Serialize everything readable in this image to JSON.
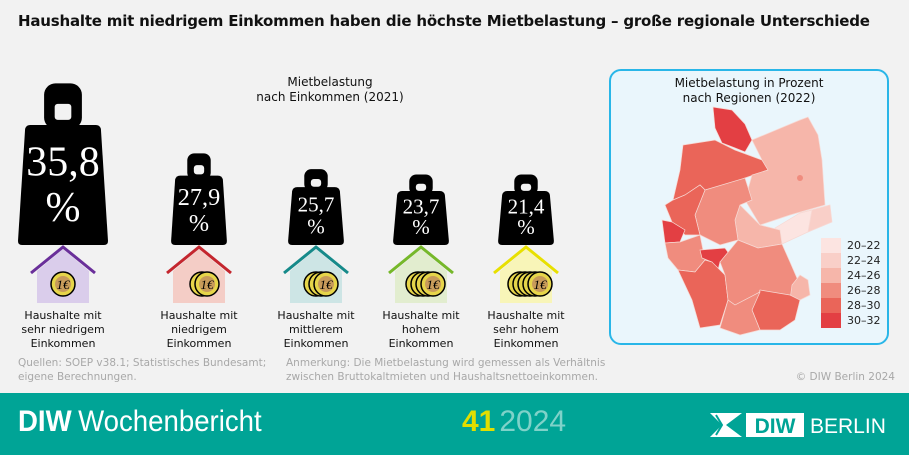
{
  "title": "Haushalte mit niedrigem Einkommen haben die höchste Mietbelastung – große regionale Unterschiede",
  "left_chart": {
    "title_line1": "Mietbelastung",
    "title_line2": "nach Einkommen (2021)"
  },
  "chart_data": [
    {
      "type": "pictogram-bar",
      "title": "Mietbelastung nach Einkommen (2021)",
      "unit": "%",
      "categories": [
        "Haushalte mit sehr niedrigem Einkommen",
        "Haushalte mit niedrigem Einkommen",
        "Haushalte mit mittlerem Einkommen",
        "Haushalte mit hohem Einkommen",
        "Haushalte mit sehr hohem Einkommen"
      ],
      "values": [
        35.8,
        27.9,
        25.7,
        23.7,
        21.4
      ],
      "value_labels": [
        "35,8",
        "27,9",
        "25,7",
        "23,7",
        "21,4"
      ]
    },
    {
      "type": "choropleth",
      "title": "Mietbelastung in Prozent nach Regionen (2022)",
      "legend": [
        "20–22",
        "22–24",
        "24–26",
        "26–28",
        "28–30",
        "30–32"
      ],
      "legend_colors": [
        "#fce4e1",
        "#f9cfc8",
        "#f6b6aa",
        "#f08c7e",
        "#ea6559",
        "#e33f43"
      ],
      "legend_placement": "bottom-right"
    }
  ],
  "weights": [
    {
      "value": "35,8",
      "pct": "%",
      "label": [
        "Haushalte mit",
        "sehr niedrigem",
        "Einkommen"
      ],
      "coins": 1,
      "roof": "#6a2f9a",
      "wall": "#dacdeb"
    },
    {
      "value": "27,9",
      "pct": "%",
      "label": [
        "Haushalte mit",
        "niedrigem",
        "Einkommen"
      ],
      "coins": 2,
      "roof": "#c4262e",
      "wall": "#f4cdc6"
    },
    {
      "value": "25,7",
      "pct": "%",
      "label": [
        "Haushalte mit",
        "mittlerem",
        "Einkommen"
      ],
      "coins": 3,
      "roof": "#168a8a",
      "wall": "#cde5e5"
    },
    {
      "value": "23,7",
      "pct": "%",
      "label": [
        "Haushalte mit",
        "hohem",
        "Einkommen"
      ],
      "coins": 4,
      "roof": "#76b82a",
      "wall": "#e2edcf"
    },
    {
      "value": "21,4",
      "pct": "%",
      "label": [
        "Haushalte mit",
        "sehr hohem",
        "Einkommen"
      ],
      "coins": 5,
      "roof": "#e8e000",
      "wall": "#f8f5b8"
    }
  ],
  "coin_text": "1€",
  "map": {
    "title_line1": "Mietbelastung in Prozent",
    "title_line2": "nach Regionen (2022)",
    "legend": [
      "20–22",
      "22–24",
      "24–26",
      "26–28",
      "28–30",
      "30–32"
    ]
  },
  "sources_line1": "Quellen: SOEP v38.1; Statistisches Bundesamt;",
  "sources_line2": "eigene Berechnungen.",
  "note_line1": "Anmerkung: Die Mietbelastung wird gemessen als Verhältnis",
  "note_line2": "zwischen Bruttokaltmieten und Haushaltsnettoeinkommen.",
  "copyright": "© DIW Berlin 2024",
  "footer": {
    "brand": "DIW",
    "publication": "Wochenbericht",
    "issue": "41",
    "year": "2024",
    "logo_diw": "DIW",
    "logo_berlin": "BERLIN"
  }
}
